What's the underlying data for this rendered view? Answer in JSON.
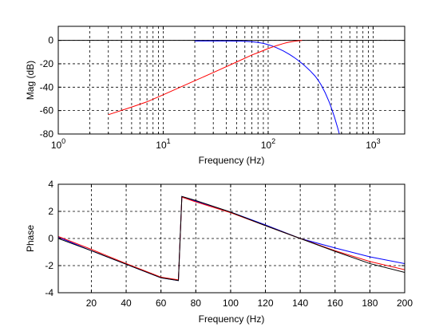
{
  "chart_data": [
    {
      "type": "line",
      "xscale": "log",
      "xlim": [
        1,
        2000
      ],
      "ylim": [
        -80,
        12
      ],
      "xlabel": "Frequency (Hz)",
      "ylabel": "Mag (dB)",
      "title": "",
      "grid": true,
      "legend": "none",
      "xticks": [
        {
          "value": 1,
          "base": "10",
          "exp": "0"
        },
        {
          "value": 10,
          "base": "10",
          "exp": "1"
        },
        {
          "value": 100,
          "base": "10",
          "exp": "2"
        },
        {
          "value": 1000,
          "base": "10",
          "exp": "3"
        }
      ],
      "yticks": [
        {
          "value": 0,
          "label": "0"
        },
        {
          "value": -20,
          "label": "-20"
        },
        {
          "value": -40,
          "label": "-40"
        },
        {
          "value": -60,
          "label": "-60"
        },
        {
          "value": -80,
          "label": "-80"
        }
      ],
      "series": [
        {
          "color": "#000000",
          "x": [
            1,
            2000
          ],
          "y": [
            0,
            0
          ]
        },
        {
          "color": "#0000ff",
          "x": [
            20,
            30,
            40,
            50,
            60,
            70,
            80,
            90,
            100,
            110,
            120,
            130,
            140,
            150,
            160,
            170,
            180,
            190,
            200,
            220,
            250,
            280,
            300,
            320,
            350,
            380,
            400,
            430,
            460,
            480
          ],
          "y": [
            -0.5,
            -0.5,
            -0.5,
            -0.6,
            -0.8,
            -1.2,
            -1.8,
            -2.6,
            -3.7,
            -4.9,
            -6.3,
            -7.7,
            -9.1,
            -10.6,
            -12.1,
            -13.6,
            -15.1,
            -16.6,
            -18.2,
            -21.2,
            -25.8,
            -30.5,
            -34.1,
            -38.1,
            -44.9,
            -52.3,
            -57.6,
            -66.0,
            -74.9,
            -81.0
          ]
        },
        {
          "color": "#ff0000",
          "x": [
            3,
            5,
            7,
            10,
            20,
            30,
            50,
            70,
            80,
            100,
            120,
            140,
            150,
            170,
            180,
            200,
            210
          ],
          "y": [
            -63.5,
            -57,
            -52.5,
            -46.5,
            -34.5,
            -27.5,
            -18.5,
            -12.5,
            -10.5,
            -7,
            -4.5,
            -2.7,
            -2,
            -1,
            -0.7,
            -0.3,
            -0.1
          ]
        }
      ]
    },
    {
      "type": "line",
      "xlim": [
        1,
        200
      ],
      "ylim": [
        -4,
        4
      ],
      "xlabel": "Frequency (Hz)",
      "ylabel": "Phase",
      "title": "",
      "grid": true,
      "legend": "none",
      "xticks": [
        {
          "value": 20,
          "label": "20"
        },
        {
          "value": 40,
          "label": "40"
        },
        {
          "value": 60,
          "label": "60"
        },
        {
          "value": 80,
          "label": "80"
        },
        {
          "value": 100,
          "label": "100"
        },
        {
          "value": 120,
          "label": "120"
        },
        {
          "value": 140,
          "label": "140"
        },
        {
          "value": 160,
          "label": "160"
        },
        {
          "value": 180,
          "label": "180"
        },
        {
          "value": 200,
          "label": "200"
        }
      ],
      "yticks": [
        {
          "value": 4,
          "label": "4"
        },
        {
          "value": 2,
          "label": "2"
        },
        {
          "value": 0,
          "label": "0"
        },
        {
          "value": -2,
          "label": "-2"
        },
        {
          "value": -4,
          "label": "-4"
        }
      ],
      "series": [
        {
          "color": "#0000ff",
          "x": [
            1,
            20,
            40,
            60,
            70,
            70.01,
            72,
            80,
            100,
            120,
            140,
            160,
            180,
            200
          ],
          "y": [
            0.1,
            -0.9,
            -1.9,
            -2.9,
            -3.1,
            -3.1,
            3.1,
            2.75,
            1.95,
            1.0,
            0.0,
            -0.7,
            -1.35,
            -1.85
          ]
        },
        {
          "color": "#ff0000",
          "x": [
            1,
            20,
            40,
            60,
            70,
            70.01,
            72,
            80,
            100,
            120,
            140,
            160,
            180,
            200
          ],
          "y": [
            0.15,
            -0.8,
            -1.85,
            -2.85,
            -3.05,
            -3.05,
            3.05,
            2.7,
            1.9,
            0.95,
            0.0,
            -0.9,
            -1.7,
            -2.3
          ]
        },
        {
          "color": "#000000",
          "x": [
            1,
            20,
            40,
            60,
            70,
            70.01,
            72,
            80,
            100,
            120,
            140,
            160,
            180,
            200
          ],
          "y": [
            0.0,
            -0.9,
            -1.9,
            -2.9,
            -3.1,
            -3.1,
            3.1,
            2.8,
            1.95,
            0.95,
            0.0,
            -0.95,
            -1.85,
            -2.5
          ]
        }
      ]
    }
  ]
}
